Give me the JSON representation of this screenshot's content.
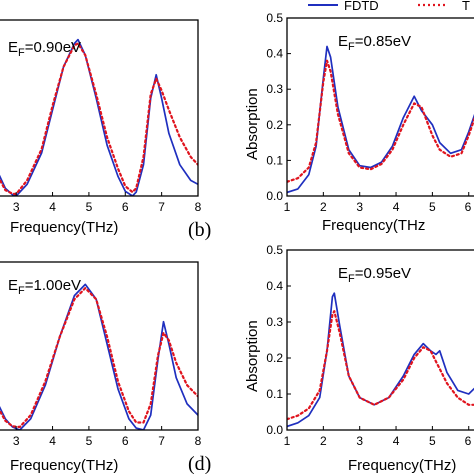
{
  "legend": {
    "fdtd": "FDTD",
    "theory": "T"
  },
  "colors": {
    "fdtd": "#1f2fbf",
    "theory": "#e0141e"
  },
  "chart_data": [
    {
      "id": "a",
      "type": "line",
      "annotation_main": "E",
      "annotation_sub": "F",
      "annotation_tail": "=0.90eV",
      "xlabel": "Frequency(THz)",
      "ylabel": "",
      "xlim": [
        2.5,
        8
      ],
      "ylim": [
        0,
        0.45
      ],
      "xticks": [
        3,
        4,
        5,
        6,
        7,
        8
      ],
      "yticks": [],
      "panel_label": "(b)",
      "series": [
        {
          "name": "FDTD",
          "x": [
            2.5,
            2.7,
            2.9,
            3.0,
            3.3,
            3.7,
            4.0,
            4.3,
            4.6,
            4.7,
            4.9,
            5.2,
            5.5,
            5.8,
            6.0,
            6.2,
            6.3,
            6.5,
            6.7,
            6.85,
            7.0,
            7.2,
            7.5,
            7.8,
            8.0
          ],
          "y": [
            0.06,
            0.02,
            0.003,
            0.0,
            0.03,
            0.11,
            0.22,
            0.33,
            0.39,
            0.4,
            0.36,
            0.25,
            0.13,
            0.05,
            0.012,
            0.0,
            0.01,
            0.08,
            0.25,
            0.31,
            0.25,
            0.16,
            0.08,
            0.04,
            0.03
          ]
        },
        {
          "name": "Theory",
          "x": [
            2.5,
            2.7,
            2.9,
            3.0,
            3.3,
            3.7,
            4.0,
            4.3,
            4.6,
            4.7,
            4.9,
            5.2,
            5.5,
            5.8,
            6.0,
            6.2,
            6.3,
            6.5,
            6.7,
            6.85,
            7.0,
            7.2,
            7.5,
            7.8,
            8.0
          ],
          "y": [
            0.05,
            0.015,
            0.006,
            0.005,
            0.04,
            0.12,
            0.23,
            0.33,
            0.385,
            0.39,
            0.36,
            0.26,
            0.15,
            0.07,
            0.025,
            0.01,
            0.02,
            0.1,
            0.26,
            0.3,
            0.27,
            0.22,
            0.15,
            0.1,
            0.08
          ]
        }
      ]
    },
    {
      "id": "b",
      "type": "line",
      "annotation_main": "E",
      "annotation_sub": "F",
      "annotation_tail": "=0.85eV",
      "xlabel": "Frequency(THz",
      "ylabel": "Absorption",
      "xlim": [
        1,
        6.2
      ],
      "ylim": [
        0,
        0.5
      ],
      "xticks": [
        1,
        2,
        3,
        4,
        5,
        6
      ],
      "xticklabels": [
        "1",
        "2",
        "3",
        "4",
        "5",
        "6"
      ],
      "yticks": [
        0.0,
        0.1,
        0.2,
        0.3,
        0.4,
        0.5
      ],
      "yticklabels": [
        "0.0",
        "0.1",
        "0.2",
        "0.3",
        "0.4",
        "0.5"
      ],
      "series": [
        {
          "name": "FDTD",
          "x": [
            1.0,
            1.3,
            1.6,
            1.8,
            2.0,
            2.1,
            2.2,
            2.4,
            2.7,
            3.0,
            3.3,
            3.6,
            3.9,
            4.2,
            4.5,
            4.7,
            4.85,
            5.0,
            5.2,
            5.5,
            5.8,
            6.0,
            6.2
          ],
          "y": [
            0.01,
            0.02,
            0.06,
            0.14,
            0.33,
            0.42,
            0.39,
            0.25,
            0.13,
            0.085,
            0.08,
            0.095,
            0.14,
            0.22,
            0.28,
            0.24,
            0.22,
            0.2,
            0.15,
            0.12,
            0.13,
            0.18,
            0.24
          ]
        },
        {
          "name": "Theory",
          "x": [
            1.0,
            1.3,
            1.6,
            1.8,
            2.0,
            2.1,
            2.2,
            2.4,
            2.7,
            3.0,
            3.3,
            3.6,
            3.9,
            4.2,
            4.5,
            4.7,
            4.85,
            5.0,
            5.2,
            5.5,
            5.8,
            6.0,
            6.2
          ],
          "y": [
            0.04,
            0.05,
            0.08,
            0.15,
            0.32,
            0.38,
            0.35,
            0.23,
            0.12,
            0.08,
            0.075,
            0.09,
            0.13,
            0.2,
            0.26,
            0.25,
            0.21,
            0.17,
            0.13,
            0.11,
            0.12,
            0.17,
            0.23
          ]
        }
      ]
    },
    {
      "id": "c",
      "type": "line",
      "annotation_main": "E",
      "annotation_sub": "F",
      "annotation_tail": "=1.00eV",
      "xlabel": "Frequency(THz)",
      "ylabel": "",
      "xlim": [
        2.5,
        8
      ],
      "ylim": [
        0,
        0.45
      ],
      "xticks": [
        3,
        4,
        5,
        6,
        7,
        8
      ],
      "yticks": [],
      "panel_label": "(d)",
      "series": [
        {
          "name": "FDTD",
          "x": [
            2.5,
            2.7,
            2.9,
            3.1,
            3.4,
            3.8,
            4.2,
            4.6,
            4.9,
            5.2,
            5.5,
            5.8,
            6.1,
            6.3,
            6.5,
            6.7,
            6.9,
            7.05,
            7.2,
            7.4,
            7.7,
            8.0
          ],
          "y": [
            0.07,
            0.03,
            0.008,
            0.0,
            0.03,
            0.12,
            0.25,
            0.36,
            0.39,
            0.35,
            0.23,
            0.11,
            0.03,
            0.005,
            0.0,
            0.04,
            0.19,
            0.29,
            0.23,
            0.14,
            0.07,
            0.04
          ]
        },
        {
          "name": "Theory",
          "x": [
            2.5,
            2.7,
            2.9,
            3.1,
            3.4,
            3.8,
            4.2,
            4.6,
            4.9,
            5.2,
            5.5,
            5.8,
            6.1,
            6.3,
            6.5,
            6.7,
            6.9,
            7.05,
            7.2,
            7.4,
            7.7,
            8.0
          ],
          "y": [
            0.06,
            0.025,
            0.01,
            0.008,
            0.04,
            0.13,
            0.25,
            0.35,
            0.38,
            0.35,
            0.25,
            0.13,
            0.05,
            0.02,
            0.02,
            0.07,
            0.2,
            0.26,
            0.24,
            0.18,
            0.12,
            0.09
          ]
        }
      ]
    },
    {
      "id": "d",
      "type": "line",
      "annotation_main": "E",
      "annotation_sub": "F",
      "annotation_tail": "=0.95eV",
      "xlabel": "Frequency(THz)",
      "ylabel": "Absorption",
      "xlim": [
        1,
        6.2
      ],
      "ylim": [
        0,
        0.5
      ],
      "xticks": [
        1,
        2,
        3,
        4,
        5,
        6
      ],
      "xticklabels": [
        "1",
        "2",
        "3",
        "4",
        "5",
        "6"
      ],
      "yticks": [
        0.0,
        0.1,
        0.2,
        0.3,
        0.4,
        0.5
      ],
      "yticklabels": [
        "0.0",
        "0.1",
        "0.2",
        "0.3",
        "0.4",
        "0.5"
      ],
      "series": [
        {
          "name": "FDTD",
          "x": [
            1.0,
            1.3,
            1.6,
            1.9,
            2.1,
            2.25,
            2.3,
            2.45,
            2.7,
            3.0,
            3.4,
            3.8,
            4.2,
            4.5,
            4.75,
            4.95,
            5.1,
            5.2,
            5.4,
            5.7,
            6.0,
            6.2
          ],
          "y": [
            0.01,
            0.02,
            0.04,
            0.09,
            0.22,
            0.37,
            0.38,
            0.29,
            0.15,
            0.09,
            0.07,
            0.09,
            0.15,
            0.21,
            0.24,
            0.22,
            0.21,
            0.22,
            0.16,
            0.11,
            0.1,
            0.12
          ]
        },
        {
          "name": "Theory",
          "x": [
            1.0,
            1.3,
            1.6,
            1.9,
            2.1,
            2.25,
            2.3,
            2.45,
            2.7,
            3.0,
            3.4,
            3.8,
            4.2,
            4.5,
            4.75,
            4.95,
            5.1,
            5.2,
            5.4,
            5.7,
            6.0,
            6.2
          ],
          "y": [
            0.03,
            0.04,
            0.06,
            0.11,
            0.22,
            0.32,
            0.33,
            0.27,
            0.15,
            0.09,
            0.07,
            0.09,
            0.14,
            0.2,
            0.23,
            0.22,
            0.19,
            0.17,
            0.13,
            0.09,
            0.07,
            0.07
          ]
        }
      ]
    }
  ]
}
